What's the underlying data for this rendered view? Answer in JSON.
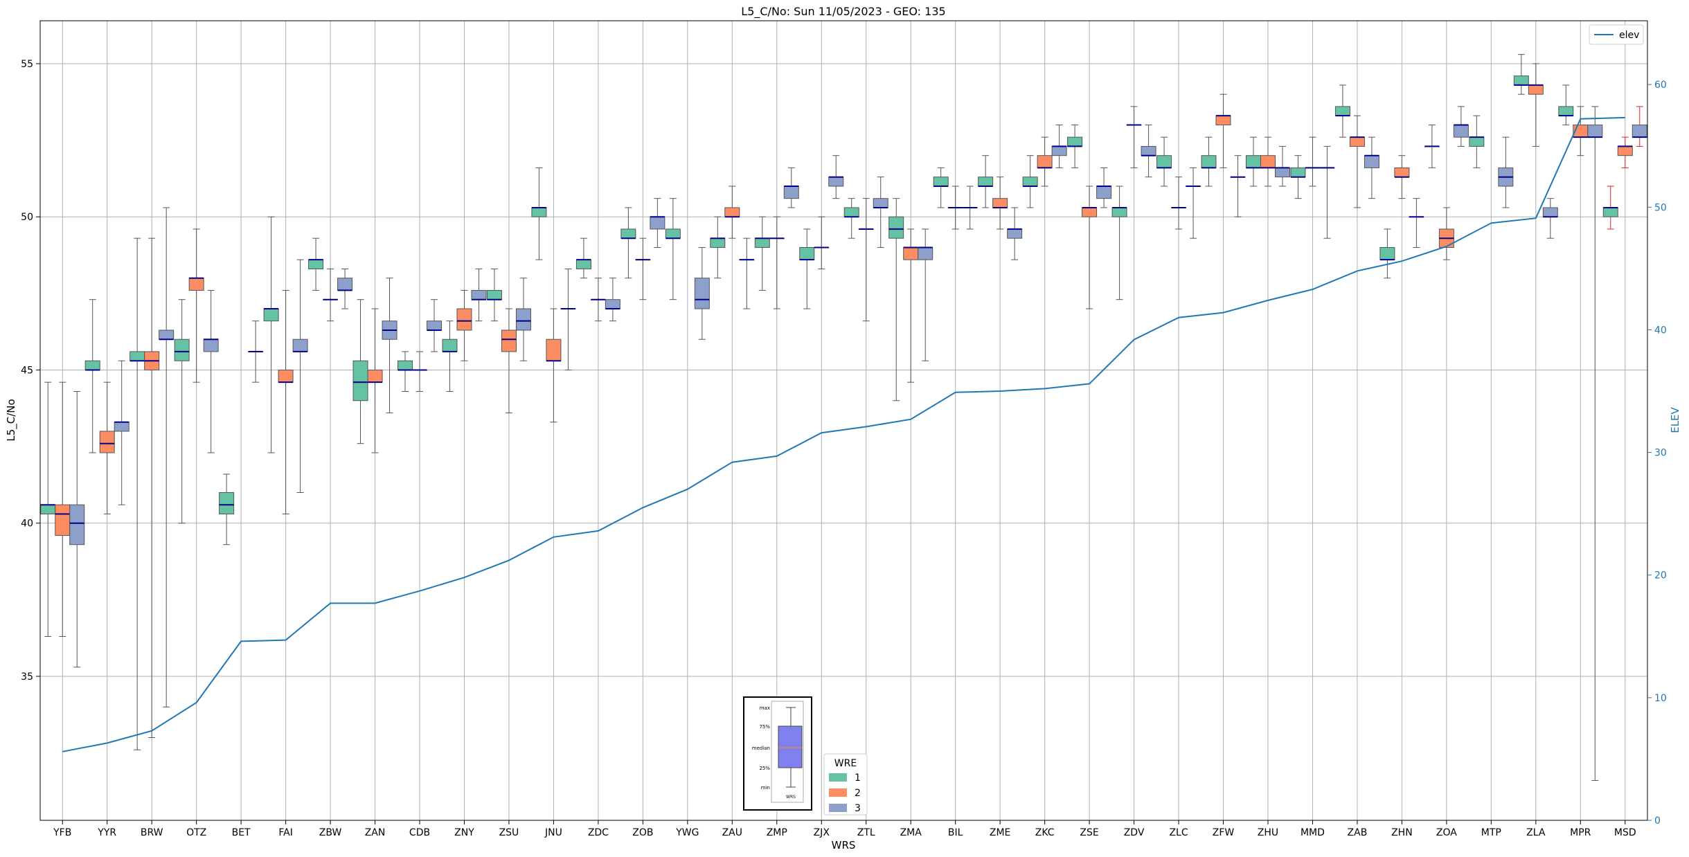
{
  "chart_data": {
    "type": "box",
    "title": "L5_C/No: Sun 11/05/2023 - GEO: 135",
    "xlabel": "WRS",
    "ylabel": "L5_C/No",
    "y2label": "ELEV",
    "ylim": [
      30.3,
      56.4
    ],
    "y2lim": [
      0,
      65.2
    ],
    "yticks": [
      "35",
      "40",
      "45",
      "50",
      "55"
    ],
    "y2ticks": [
      "0",
      "10",
      "20",
      "30",
      "40",
      "50",
      "60"
    ],
    "grid": true,
    "categories": [
      "YFB",
      "YYR",
      "BRW",
      "OTZ",
      "BET",
      "FAI",
      "ZBW",
      "ZAN",
      "CDB",
      "ZNY",
      "ZSU",
      "JNU",
      "ZDC",
      "ZOB",
      "YWG",
      "ZAU",
      "ZMP",
      "ZJX",
      "ZTL",
      "ZMA",
      "BIL",
      "ZME",
      "ZKC",
      "ZSE",
      "ZDV",
      "ZLC",
      "ZFW",
      "ZHU",
      "MMD",
      "ZAB",
      "ZHN",
      "ZOA",
      "MTP",
      "ZLA",
      "MPR",
      "MSD"
    ],
    "series_colors": {
      "1": "#66c2a5",
      "2": "#fc8d62",
      "3": "#8da0cb"
    },
    "median_color": "#00008b",
    "legend_wre": {
      "title": "WRE",
      "labels": [
        "1",
        "2",
        "3"
      ],
      "placement": "bottom-center"
    },
    "legend_elev": {
      "label": "elev",
      "placement": "top-right",
      "color": "#1f77b4"
    },
    "key_box": {
      "labels": [
        "max",
        "75%",
        "median",
        "25%",
        "min",
        "WRS"
      ]
    },
    "boxes": [
      {
        "wrs": "YFB",
        "wre": "1",
        "min": 36.3,
        "q1": 40.3,
        "med": 40.6,
        "q3": 40.6,
        "max": 44.6
      },
      {
        "wrs": "YFB",
        "wre": "2",
        "min": 36.3,
        "q1": 39.6,
        "med": 40.3,
        "q3": 40.6,
        "max": 44.6
      },
      {
        "wrs": "YFB",
        "wre": "3",
        "min": 35.3,
        "q1": 39.3,
        "med": 40.0,
        "q3": 40.6,
        "max": 44.3
      },
      {
        "wrs": "YYR",
        "wre": "1",
        "min": 42.3,
        "q1": 45.0,
        "med": 45.0,
        "q3": 45.3,
        "max": 47.3
      },
      {
        "wrs": "YYR",
        "wre": "2",
        "min": 40.3,
        "q1": 42.3,
        "med": 42.6,
        "q3": 43.0,
        "max": 44.6
      },
      {
        "wrs": "YYR",
        "wre": "3",
        "min": 40.6,
        "q1": 43.0,
        "med": 43.3,
        "q3": 43.3,
        "max": 45.3
      },
      {
        "wrs": "BRW",
        "wre": "1",
        "min": 32.6,
        "q1": 45.3,
        "med": 45.3,
        "q3": 45.6,
        "max": 49.3
      },
      {
        "wrs": "BRW",
        "wre": "2",
        "min": 33.0,
        "q1": 45.0,
        "med": 45.3,
        "q3": 45.6,
        "max": 49.3
      },
      {
        "wrs": "BRW",
        "wre": "3",
        "min": 34.0,
        "q1": 46.0,
        "med": 46.0,
        "q3": 46.3,
        "max": 50.3
      },
      {
        "wrs": "OTZ",
        "wre": "1",
        "min": 40.0,
        "q1": 45.3,
        "med": 45.6,
        "q3": 46.0,
        "max": 47.3
      },
      {
        "wrs": "OTZ",
        "wre": "2",
        "min": 44.6,
        "q1": 47.6,
        "med": 48.0,
        "q3": 48.0,
        "max": 49.6
      },
      {
        "wrs": "OTZ",
        "wre": "3",
        "min": 42.3,
        "q1": 45.6,
        "med": 46.0,
        "q3": 46.0,
        "max": 47.6
      },
      {
        "wrs": "BET",
        "wre": "1",
        "min": 39.3,
        "q1": 40.3,
        "med": 40.6,
        "q3": 41.0,
        "max": 41.6
      },
      {
        "wrs": "BET",
        "wre": "3",
        "min": 44.6,
        "q1": 45.6,
        "med": 45.6,
        "q3": 45.6,
        "max": 46.6
      },
      {
        "wrs": "FAI",
        "wre": "1",
        "min": 42.3,
        "q1": 46.6,
        "med": 47.0,
        "q3": 47.0,
        "max": 50.0
      },
      {
        "wrs": "FAI",
        "wre": "2",
        "min": 40.3,
        "q1": 44.6,
        "med": 44.6,
        "q3": 45.0,
        "max": 47.6
      },
      {
        "wrs": "FAI",
        "wre": "3",
        "min": 41.0,
        "q1": 45.6,
        "med": 45.6,
        "q3": 46.0,
        "max": 48.6
      },
      {
        "wrs": "ZBW",
        "wre": "1",
        "min": 47.6,
        "q1": 48.3,
        "med": 48.6,
        "q3": 48.6,
        "max": 49.3
      },
      {
        "wrs": "ZBW",
        "wre": "2",
        "min": 46.6,
        "q1": 47.3,
        "med": 47.3,
        "q3": 47.3,
        "max": 48.3
      },
      {
        "wrs": "ZBW",
        "wre": "3",
        "min": 47.0,
        "q1": 47.6,
        "med": 47.6,
        "q3": 48.0,
        "max": 48.3
      },
      {
        "wrs": "ZAN",
        "wre": "1",
        "min": 42.6,
        "q1": 44.0,
        "med": 44.6,
        "q3": 45.3,
        "max": 47.3
      },
      {
        "wrs": "ZAN",
        "wre": "2",
        "min": 42.3,
        "q1": 44.6,
        "med": 44.6,
        "q3": 45.0,
        "max": 47.0
      },
      {
        "wrs": "ZAN",
        "wre": "3",
        "min": 43.6,
        "q1": 46.0,
        "med": 46.3,
        "q3": 46.6,
        "max": 48.0
      },
      {
        "wrs": "CDB",
        "wre": "1",
        "min": 44.3,
        "q1": 45.0,
        "med": 45.0,
        "q3": 45.3,
        "max": 45.6
      },
      {
        "wrs": "CDB",
        "wre": "2",
        "min": 44.3,
        "q1": 45.0,
        "med": 45.0,
        "q3": 45.0,
        "max": 45.6
      },
      {
        "wrs": "CDB",
        "wre": "3",
        "min": 45.6,
        "q1": 46.3,
        "med": 46.3,
        "q3": 46.6,
        "max": 47.3
      },
      {
        "wrs": "ZNY",
        "wre": "1",
        "min": 44.3,
        "q1": 45.6,
        "med": 45.6,
        "q3": 46.0,
        "max": 46.6
      },
      {
        "wrs": "ZNY",
        "wre": "2",
        "min": 45.3,
        "q1": 46.3,
        "med": 46.6,
        "q3": 47.0,
        "max": 47.6
      },
      {
        "wrs": "ZNY",
        "wre": "3",
        "min": 46.6,
        "q1": 47.3,
        "med": 47.3,
        "q3": 47.6,
        "max": 48.3
      },
      {
        "wrs": "ZSU",
        "wre": "1",
        "min": 46.6,
        "q1": 47.3,
        "med": 47.3,
        "q3": 47.6,
        "max": 48.3
      },
      {
        "wrs": "ZSU",
        "wre": "2",
        "min": 43.6,
        "q1": 45.6,
        "med": 46.0,
        "q3": 46.3,
        "max": 47.0
      },
      {
        "wrs": "ZSU",
        "wre": "3",
        "min": 45.3,
        "q1": 46.3,
        "med": 46.6,
        "q3": 47.0,
        "max": 48.0
      },
      {
        "wrs": "JNU",
        "wre": "1",
        "min": 48.6,
        "q1": 50.0,
        "med": 50.3,
        "q3": 50.3,
        "max": 51.6
      },
      {
        "wrs": "JNU",
        "wre": "2",
        "min": 43.3,
        "q1": 45.3,
        "med": 45.3,
        "q3": 46.0,
        "max": 47.0
      },
      {
        "wrs": "JNU",
        "wre": "3",
        "min": 45.0,
        "q1": 47.0,
        "med": 47.0,
        "q3": 47.0,
        "max": 48.3
      },
      {
        "wrs": "ZDC",
        "wre": "1",
        "min": 48.0,
        "q1": 48.3,
        "med": 48.6,
        "q3": 48.6,
        "max": 49.3
      },
      {
        "wrs": "ZDC",
        "wre": "2",
        "min": 46.6,
        "q1": 47.3,
        "med": 47.3,
        "q3": 47.3,
        "max": 48.0
      },
      {
        "wrs": "ZDC",
        "wre": "3",
        "min": 46.6,
        "q1": 47.0,
        "med": 47.0,
        "q3": 47.3,
        "max": 48.0
      },
      {
        "wrs": "ZOB",
        "wre": "1",
        "min": 48.0,
        "q1": 49.3,
        "med": 49.3,
        "q3": 49.6,
        "max": 50.3
      },
      {
        "wrs": "ZOB",
        "wre": "2",
        "min": 47.3,
        "q1": 48.6,
        "med": 48.6,
        "q3": 48.6,
        "max": 49.3
      },
      {
        "wrs": "ZOB",
        "wre": "3",
        "min": 49.0,
        "q1": 49.6,
        "med": 50.0,
        "q3": 50.0,
        "max": 50.6
      },
      {
        "wrs": "YWG",
        "wre": "1",
        "min": 47.3,
        "q1": 49.3,
        "med": 49.3,
        "q3": 49.6,
        "max": 50.6
      },
      {
        "wrs": "YWG",
        "wre": "3",
        "min": 46.0,
        "q1": 47.0,
        "med": 47.3,
        "q3": 48.0,
        "max": 49.0
      },
      {
        "wrs": "ZAU",
        "wre": "1",
        "min": 48.0,
        "q1": 49.0,
        "med": 49.3,
        "q3": 49.3,
        "max": 50.0
      },
      {
        "wrs": "ZAU",
        "wre": "2",
        "min": 49.3,
        "q1": 50.0,
        "med": 50.0,
        "q3": 50.3,
        "max": 51.0
      },
      {
        "wrs": "ZAU",
        "wre": "3",
        "min": 47.0,
        "q1": 48.6,
        "med": 48.6,
        "q3": 48.6,
        "max": 49.3
      },
      {
        "wrs": "ZMP",
        "wre": "1",
        "min": 47.6,
        "q1": 49.0,
        "med": 49.3,
        "q3": 49.3,
        "max": 50.0
      },
      {
        "wrs": "ZMP",
        "wre": "2",
        "min": 47.0,
        "q1": 49.3,
        "med": 49.3,
        "q3": 49.3,
        "max": 50.0
      },
      {
        "wrs": "ZMP",
        "wre": "3",
        "min": 50.3,
        "q1": 50.6,
        "med": 51.0,
        "q3": 51.0,
        "max": 51.6
      },
      {
        "wrs": "ZJX",
        "wre": "1",
        "min": 47.0,
        "q1": 48.6,
        "med": 48.6,
        "q3": 49.0,
        "max": 49.6
      },
      {
        "wrs": "ZJX",
        "wre": "2",
        "min": 48.3,
        "q1": 49.0,
        "med": 49.0,
        "q3": 49.0,
        "max": 50.0
      },
      {
        "wrs": "ZJX",
        "wre": "3",
        "min": 50.6,
        "q1": 51.0,
        "med": 51.3,
        "q3": 51.3,
        "max": 52.0
      },
      {
        "wrs": "ZTL",
        "wre": "1",
        "min": 49.3,
        "q1": 50.0,
        "med": 50.0,
        "q3": 50.3,
        "max": 50.6
      },
      {
        "wrs": "ZTL",
        "wre": "2",
        "min": 46.6,
        "q1": 49.6,
        "med": 49.6,
        "q3": 49.6,
        "max": 50.6
      },
      {
        "wrs": "ZTL",
        "wre": "3",
        "min": 49.0,
        "q1": 50.3,
        "med": 50.3,
        "q3": 50.6,
        "max": 51.3
      },
      {
        "wrs": "ZMA",
        "wre": "1",
        "min": 44.0,
        "q1": 49.3,
        "med": 49.6,
        "q3": 50.0,
        "max": 50.6
      },
      {
        "wrs": "ZMA",
        "wre": "2",
        "min": 44.6,
        "q1": 48.6,
        "med": 49.0,
        "q3": 49.0,
        "max": 49.6
      },
      {
        "wrs": "ZMA",
        "wre": "3",
        "min": 45.3,
        "q1": 48.6,
        "med": 49.0,
        "q3": 49.0,
        "max": 49.6
      },
      {
        "wrs": "BIL",
        "wre": "1",
        "min": 50.3,
        "q1": 51.0,
        "med": 51.0,
        "q3": 51.3,
        "max": 51.6
      },
      {
        "wrs": "BIL",
        "wre": "2",
        "min": 49.6,
        "q1": 50.3,
        "med": 50.3,
        "q3": 50.3,
        "max": 51.0
      },
      {
        "wrs": "BIL",
        "wre": "3",
        "min": 49.6,
        "q1": 50.3,
        "med": 50.3,
        "q3": 50.3,
        "max": 51.0
      },
      {
        "wrs": "ZME",
        "wre": "1",
        "min": 50.3,
        "q1": 51.0,
        "med": 51.0,
        "q3": 51.3,
        "max": 52.0
      },
      {
        "wrs": "ZME",
        "wre": "2",
        "min": 49.6,
        "q1": 50.3,
        "med": 50.3,
        "q3": 50.6,
        "max": 51.3
      },
      {
        "wrs": "ZME",
        "wre": "3",
        "min": 48.6,
        "q1": 49.3,
        "med": 49.6,
        "q3": 49.6,
        "max": 50.3
      },
      {
        "wrs": "ZKC",
        "wre": "1",
        "min": 50.3,
        "q1": 51.0,
        "med": 51.0,
        "q3": 51.3,
        "max": 52.0
      },
      {
        "wrs": "ZKC",
        "wre": "2",
        "min": 51.0,
        "q1": 51.6,
        "med": 51.6,
        "q3": 52.0,
        "max": 52.6
      },
      {
        "wrs": "ZKC",
        "wre": "3",
        "min": 51.6,
        "q1": 52.0,
        "med": 52.3,
        "q3": 52.3,
        "max": 53.0
      },
      {
        "wrs": "ZSE",
        "wre": "1",
        "min": 51.6,
        "q1": 52.3,
        "med": 52.3,
        "q3": 52.6,
        "max": 53.0
      },
      {
        "wrs": "ZSE",
        "wre": "2",
        "min": 47.0,
        "q1": 50.0,
        "med": 50.3,
        "q3": 50.3,
        "max": 51.0
      },
      {
        "wrs": "ZSE",
        "wre": "3",
        "min": 50.3,
        "q1": 50.6,
        "med": 51.0,
        "q3": 51.0,
        "max": 51.6
      },
      {
        "wrs": "ZDV",
        "wre": "1",
        "min": 47.3,
        "q1": 50.0,
        "med": 50.3,
        "q3": 50.3,
        "max": 51.0
      },
      {
        "wrs": "ZDV",
        "wre": "2",
        "min": 51.6,
        "q1": 53.0,
        "med": 53.0,
        "q3": 53.0,
        "max": 53.6
      },
      {
        "wrs": "ZDV",
        "wre": "3",
        "min": 51.3,
        "q1": 52.0,
        "med": 52.0,
        "q3": 52.3,
        "max": 53.0
      },
      {
        "wrs": "ZLC",
        "wre": "1",
        "min": 51.0,
        "q1": 51.6,
        "med": 51.6,
        "q3": 52.0,
        "max": 52.6
      },
      {
        "wrs": "ZLC",
        "wre": "2",
        "min": 49.6,
        "q1": 50.3,
        "med": 50.3,
        "q3": 50.3,
        "max": 51.3
      },
      {
        "wrs": "ZLC",
        "wre": "3",
        "min": 49.3,
        "q1": 51.0,
        "med": 51.0,
        "q3": 51.0,
        "max": 51.6
      },
      {
        "wrs": "ZFW",
        "wre": "1",
        "min": 51.0,
        "q1": 51.6,
        "med": 51.6,
        "q3": 52.0,
        "max": 52.6
      },
      {
        "wrs": "ZFW",
        "wre": "2",
        "min": 51.6,
        "q1": 53.0,
        "med": 53.3,
        "q3": 53.3,
        "max": 54.0
      },
      {
        "wrs": "ZFW",
        "wre": "3",
        "min": 50.0,
        "q1": 51.3,
        "med": 51.3,
        "q3": 51.3,
        "max": 52.0
      },
      {
        "wrs": "ZHU",
        "wre": "1",
        "min": 51.0,
        "q1": 51.6,
        "med": 51.6,
        "q3": 52.0,
        "max": 52.6
      },
      {
        "wrs": "ZHU",
        "wre": "2",
        "min": 51.0,
        "q1": 51.6,
        "med": 51.6,
        "q3": 52.0,
        "max": 52.6
      },
      {
        "wrs": "ZHU",
        "wre": "3",
        "min": 51.0,
        "q1": 51.3,
        "med": 51.6,
        "q3": 51.6,
        "max": 52.3
      },
      {
        "wrs": "MMD",
        "wre": "1",
        "min": 50.6,
        "q1": 51.3,
        "med": 51.3,
        "q3": 51.6,
        "max": 52.0
      },
      {
        "wrs": "MMD",
        "wre": "2",
        "min": 51.0,
        "q1": 51.6,
        "med": 51.6,
        "q3": 51.6,
        "max": 52.6
      },
      {
        "wrs": "MMD",
        "wre": "3",
        "min": 49.3,
        "q1": 51.6,
        "med": 51.6,
        "q3": 51.6,
        "max": 52.3
      },
      {
        "wrs": "ZAB",
        "wre": "1",
        "min": 52.6,
        "q1": 53.3,
        "med": 53.3,
        "q3": 53.6,
        "max": 54.3
      },
      {
        "wrs": "ZAB",
        "wre": "2",
        "min": 50.3,
        "q1": 52.3,
        "med": 52.6,
        "q3": 52.6,
        "max": 53.3
      },
      {
        "wrs": "ZAB",
        "wre": "3",
        "min": 50.6,
        "q1": 51.6,
        "med": 52.0,
        "q3": 52.0,
        "max": 52.6
      },
      {
        "wrs": "ZHN",
        "wre": "1",
        "min": 48.0,
        "q1": 48.6,
        "med": 48.6,
        "q3": 49.0,
        "max": 49.6
      },
      {
        "wrs": "ZHN",
        "wre": "2",
        "min": 50.6,
        "q1": 51.3,
        "med": 51.3,
        "q3": 51.6,
        "max": 52.0
      },
      {
        "wrs": "ZHN",
        "wre": "3",
        "min": 49.0,
        "q1": 50.0,
        "med": 50.0,
        "q3": 50.0,
        "max": 50.6
      },
      {
        "wrs": "ZOA",
        "wre": "1",
        "min": 51.6,
        "q1": 52.3,
        "med": 52.3,
        "q3": 52.3,
        "max": 53.0
      },
      {
        "wrs": "ZOA",
        "wre": "2",
        "min": 48.6,
        "q1": 49.0,
        "med": 49.3,
        "q3": 49.6,
        "max": 50.3
      },
      {
        "wrs": "ZOA",
        "wre": "3",
        "min": 52.3,
        "q1": 52.6,
        "med": 53.0,
        "q3": 53.0,
        "max": 53.6
      },
      {
        "wrs": "MTP",
        "wre": "1",
        "min": 51.6,
        "q1": 52.3,
        "med": 52.6,
        "q3": 52.6,
        "max": 53.3
      },
      {
        "wrs": "MTP",
        "wre": "3",
        "min": 50.3,
        "q1": 51.0,
        "med": 51.3,
        "q3": 51.6,
        "max": 52.6
      },
      {
        "wrs": "ZLA",
        "wre": "1",
        "min": 54.0,
        "q1": 54.3,
        "med": 54.3,
        "q3": 54.6,
        "max": 55.3
      },
      {
        "wrs": "ZLA",
        "wre": "2",
        "min": 52.3,
        "q1": 54.0,
        "med": 54.3,
        "q3": 54.3,
        "max": 55.0
      },
      {
        "wrs": "ZLA",
        "wre": "3",
        "min": 49.3,
        "q1": 50.0,
        "med": 50.0,
        "q3": 50.3,
        "max": 50.6
      },
      {
        "wrs": "MPR",
        "wre": "1",
        "min": 53.0,
        "q1": 53.3,
        "med": 53.3,
        "q3": 53.6,
        "max": 54.3
      },
      {
        "wrs": "MPR",
        "wre": "2",
        "min": 52.0,
        "q1": 52.6,
        "med": 52.6,
        "q3": 53.0,
        "max": 53.6
      },
      {
        "wrs": "MPR",
        "wre": "3",
        "min": 31.6,
        "q1": 52.6,
        "med": 52.6,
        "q3": 53.0,
        "max": 53.6
      },
      {
        "wrs": "MSD",
        "wre": "1",
        "min": 49.6,
        "q1": 50.0,
        "med": 50.3,
        "q3": 50.3,
        "max": 51.0,
        "whisker_color": "#d62728"
      },
      {
        "wrs": "MSD",
        "wre": "2",
        "min": 51.6,
        "q1": 52.0,
        "med": 52.3,
        "q3": 52.3,
        "max": 52.6,
        "whisker_color": "#d62728"
      },
      {
        "wrs": "MSD",
        "wre": "3",
        "min": 52.3,
        "q1": 52.6,
        "med": 52.6,
        "q3": 53.0,
        "max": 53.6,
        "whisker_color": "#d62728"
      }
    ],
    "elev": {
      "name": "elev",
      "x": [
        "YFB",
        "YYR",
        "BRW",
        "OTZ",
        "BET",
        "FAI",
        "ZBW",
        "ZAN",
        "CDB",
        "ZNY",
        "ZSU",
        "JNU",
        "ZDC",
        "ZOB",
        "YWG",
        "ZAU",
        "ZMP",
        "ZJX",
        "ZTL",
        "ZMA",
        "BIL",
        "ZME",
        "ZKC",
        "ZSE",
        "ZDV",
        "ZLC",
        "ZFW",
        "ZHU",
        "MMD",
        "ZAB",
        "ZHN",
        "ZOA",
        "MTP",
        "ZLA",
        "MPR",
        "MSD"
      ],
      "values": [
        5.6,
        6.3,
        7.3,
        9.6,
        14.6,
        14.7,
        17.7,
        17.7,
        18.7,
        19.8,
        21.2,
        23.1,
        23.6,
        25.5,
        27.0,
        29.2,
        29.7,
        31.6,
        32.1,
        32.7,
        34.9,
        35.0,
        35.2,
        35.6,
        39.2,
        41.0,
        41.4,
        42.4,
        43.3,
        44.8,
        45.6,
        46.8,
        48.7,
        49.1,
        57.2,
        57.3
      ]
    }
  }
}
